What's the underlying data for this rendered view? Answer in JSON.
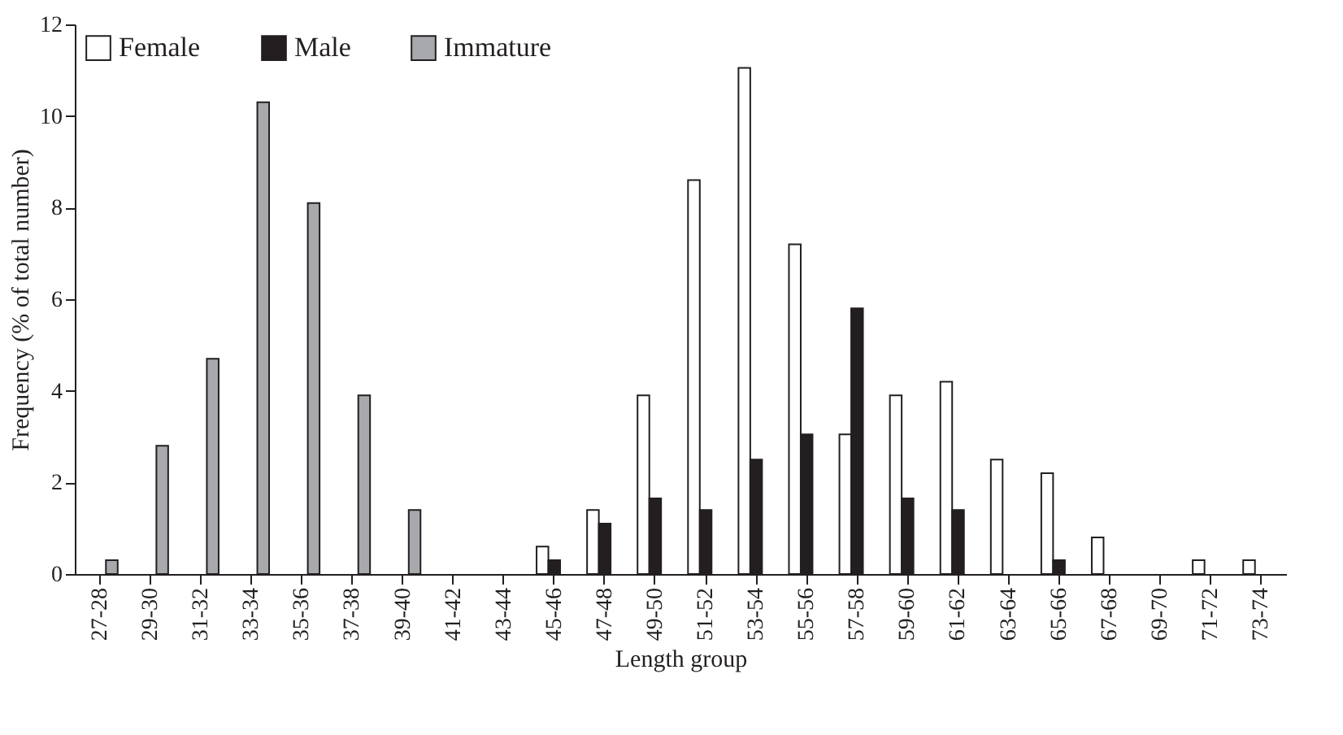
{
  "chart_data": {
    "type": "bar",
    "xlabel": "Length group",
    "ylabel": "Frequency (% of total number)",
    "categories": [
      "27-28",
      "29-30",
      "31-32",
      "33-34",
      "35-36",
      "37-38",
      "39-40",
      "41-42",
      "43-44",
      "45-46",
      "47-48",
      "49-50",
      "51-52",
      "53-54",
      "55-56",
      "57-58",
      "59-60",
      "61-62",
      "63-64",
      "65-66",
      "67-68",
      "69-70",
      "71-72",
      "73-74"
    ],
    "series": [
      {
        "name": "Female",
        "color": "#ffffff",
        "values": [
          null,
          null,
          null,
          null,
          null,
          null,
          null,
          null,
          null,
          0.6,
          1.4,
          3.9,
          8.6,
          11.05,
          7.2,
          3.05,
          3.9,
          4.2,
          2.5,
          2.2,
          0.8,
          null,
          0.3,
          0.3
        ]
      },
      {
        "name": "Male",
        "color": "#231f20",
        "values": [
          null,
          null,
          null,
          null,
          null,
          null,
          null,
          null,
          null,
          0.3,
          1.1,
          1.65,
          1.4,
          2.5,
          3.05,
          5.8,
          1.65,
          1.4,
          null,
          0.3,
          null,
          null,
          null,
          null
        ]
      },
      {
        "name": "Immature",
        "color": "#a7a9ac",
        "values": [
          0.3,
          2.8,
          4.7,
          10.3,
          8.1,
          3.9,
          1.4,
          null,
          null,
          null,
          null,
          null,
          null,
          null,
          null,
          null,
          null,
          null,
          null,
          null,
          null,
          null,
          null,
          null
        ]
      }
    ],
    "ylim": [
      0,
      12
    ],
    "yticks": [
      0,
      2,
      4,
      6,
      8,
      10,
      12
    ],
    "grid": false,
    "legend": "top left"
  }
}
